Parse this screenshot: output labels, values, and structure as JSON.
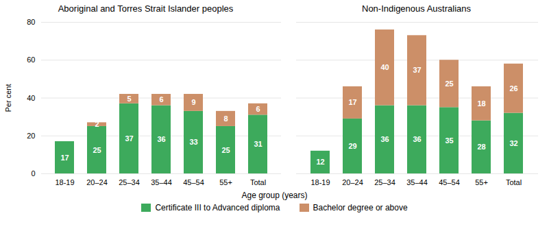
{
  "chart_data": [
    {
      "type": "bar",
      "stacked": true,
      "title": "Aboriginal and Torres Strait Islander peoples",
      "xlabel": "Age group (years)",
      "ylabel": "Per cent",
      "categories": [
        "18-19",
        "20–24",
        "25–34",
        "35–44",
        "45–54",
        "55+",
        "Total"
      ],
      "series": [
        {
          "name": "Certificate III to Advanced diploma",
          "color": "#3daa5c",
          "values": [
            17,
            25,
            37,
            36,
            33,
            25,
            31
          ]
        },
        {
          "name": "Bachelor degree or above",
          "color": "#cc8f68",
          "values": [
            0,
            2,
            5,
            6,
            9,
            8,
            6
          ]
        }
      ],
      "ylim": [
        0,
        80
      ],
      "yticks": [
        0,
        20,
        40,
        60,
        80
      ],
      "grid": true,
      "data_labels": true,
      "legend": "bottom"
    },
    {
      "type": "bar",
      "stacked": true,
      "title": "Non-Indigenous Australians",
      "categories": [
        "18-19",
        "20–24",
        "25–34",
        "35–44",
        "45–54",
        "55+",
        "Total"
      ],
      "series": [
        {
          "name": "Certificate III to Advanced diploma",
          "color": "#3daa5c",
          "values": [
            12,
            29,
            36,
            36,
            35,
            28,
            32
          ]
        },
        {
          "name": "Bachelor degree or above",
          "color": "#cc8f68",
          "values": [
            0,
            17,
            40,
            37,
            25,
            18,
            26
          ]
        }
      ],
      "ylim": [
        0,
        80
      ],
      "yticks": [
        0,
        20,
        40,
        60,
        80
      ],
      "grid": true,
      "data_labels": true,
      "legend": "bottom",
      "tick_labels": "x"
    }
  ]
}
